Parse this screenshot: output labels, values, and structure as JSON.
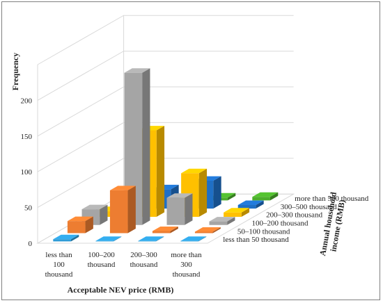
{
  "chart_data": {
    "type": "bar",
    "subtype": "3d-column",
    "title": "",
    "xlabel": "Acceptable NEV price (RMB)",
    "ylabel": "Frequency",
    "zlabel": "Annual household income (RMB)",
    "categories": [
      "less than 100 thousand",
      "100–200 thousand",
      "200–300 thousand",
      "more than 300 thousand"
    ],
    "category_lines": [
      [
        "less than",
        "100",
        "thousand"
      ],
      [
        "100–200",
        "thousand"
      ],
      [
        "200–300",
        "thousand"
      ],
      [
        "more than",
        "300",
        "thousand"
      ]
    ],
    "ylim": [
      0,
      250
    ],
    "yticks": [
      0,
      50,
      100,
      150,
      200
    ],
    "grid": true,
    "series": [
      {
        "name": "less than 50 thousand",
        "color": "#2E9BD6",
        "values": [
          3,
          0,
          0,
          0
        ]
      },
      {
        "name": "50–100 thousand",
        "color": "#ED7D31",
        "values": [
          17,
          60,
          3,
          2
        ]
      },
      {
        "name": "100–200 thousand",
        "color": "#A5A5A5",
        "values": [
          22,
          213,
          38,
          5
        ]
      },
      {
        "name": "200–300 thousand",
        "color": "#FFC000",
        "values": [
          8,
          121,
          61,
          6
        ]
      },
      {
        "name": "300–500 thousand",
        "color": "#1F6FC5",
        "values": [
          2,
          27,
          39,
          5
        ]
      },
      {
        "name": "more than 500 thousand",
        "color": "#4CAF2C",
        "values": [
          0,
          3,
          4,
          5
        ]
      }
    ]
  }
}
